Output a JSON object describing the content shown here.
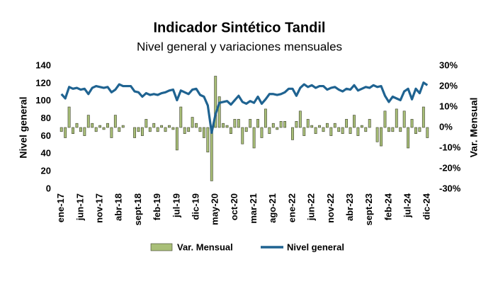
{
  "chart_data": {
    "type": "bar-line",
    "title": "Indicador Sintético Tandil",
    "subtitle": "Nivel general y variaciones mensuales",
    "ylabel": "Nivel general",
    "y2label": "Var. Mensual",
    "categories": [
      "ene-17",
      null,
      null,
      null,
      null,
      "jun-17",
      null,
      null,
      null,
      null,
      "nov-17",
      null,
      null,
      null,
      null,
      "abr-18",
      null,
      null,
      null,
      null,
      "sept-18",
      null,
      null,
      null,
      null,
      "feb-19",
      null,
      null,
      null,
      null,
      "jul-19",
      null,
      null,
      null,
      null,
      "dic-19",
      null,
      null,
      null,
      null,
      "may-20",
      null,
      null,
      null,
      null,
      "oct-20",
      null,
      null,
      null,
      null,
      "mar-21",
      null,
      null,
      null,
      null,
      "ago-21",
      null,
      null,
      null,
      null,
      "ene-22",
      null,
      null,
      null,
      null,
      "jun-22",
      null,
      null,
      null,
      null,
      "nov-22",
      null,
      null,
      null,
      null,
      "abr-23",
      null,
      null,
      null,
      null,
      "sept-23",
      null,
      null,
      null,
      null,
      "feb-24",
      null,
      null,
      null,
      null,
      "jul-24",
      null,
      null,
      null,
      null,
      "dic-24"
    ],
    "series": [
      {
        "name": "Var. Mensual",
        "type": "bar",
        "axis": "y2",
        "color": "#a9bf78",
        "edge": "#3a3f2a",
        "values": [
          -2,
          -5,
          10,
          -3,
          2,
          -2,
          -4,
          6,
          2,
          -2,
          1,
          -1,
          2,
          -5,
          6,
          -2,
          1,
          0,
          0,
          -5,
          -2,
          -4,
          4,
          -2,
          2,
          -2,
          1,
          -2,
          1,
          -1,
          -11,
          10,
          -3,
          -2,
          5,
          2,
          -2,
          -5,
          -12,
          -26,
          25,
          15,
          2,
          1,
          -3,
          4,
          4,
          -8,
          -2,
          4,
          -10,
          4,
          -5,
          9,
          -3,
          2,
          -1,
          3,
          3,
          0,
          -6,
          3,
          8,
          -4,
          4,
          1,
          -3,
          1,
          -2,
          2,
          -4,
          2,
          -2,
          -3,
          4,
          -3,
          6,
          -4,
          1,
          -2,
          4,
          0,
          -7,
          -9,
          8,
          -2,
          -2,
          9,
          -2,
          8,
          -10,
          4,
          -3,
          -2,
          10,
          -5
        ]
      },
      {
        "name": "Nivel general",
        "type": "line",
        "axis": "y",
        "color": "#1f6391",
        "values": [
          108,
          103,
          116,
          114,
          115,
          113,
          114,
          108,
          115,
          117,
          116,
          115,
          116,
          110,
          113,
          119,
          117,
          117,
          117,
          111,
          110,
          105,
          109,
          107,
          108,
          107,
          109,
          110,
          112,
          113,
          101,
          112,
          110,
          108,
          113,
          114,
          107,
          105,
          95,
          64,
          85,
          98,
          99,
          100,
          96,
          101,
          106,
          99,
          97,
          100,
          98,
          105,
          97,
          102,
          108,
          108,
          107,
          108,
          110,
          114,
          114,
          106,
          115,
          119,
          116,
          118,
          115,
          117,
          117,
          113,
          115,
          116,
          113,
          111,
          114,
          113,
          118,
          112,
          114,
          116,
          115,
          118,
          116,
          117,
          106,
          99,
          105,
          103,
          101,
          111,
          114,
          102,
          114,
          109,
          121,
          118
        ]
      }
    ],
    "ylim": [
      0,
      140
    ],
    "yticks": [
      0,
      20,
      40,
      60,
      80,
      100,
      120,
      140
    ],
    "y2lim": [
      -30,
      30
    ],
    "y2ticks": [
      {
        "value": -30,
        "label": "-30%"
      },
      {
        "value": -20,
        "label": "-20%"
      },
      {
        "value": -10,
        "label": "-10%"
      },
      {
        "value": 0,
        "label": "0%"
      },
      {
        "value": 10,
        "label": "10%"
      },
      {
        "value": 20,
        "label": "20%"
      },
      {
        "value": 30,
        "label": "30%"
      }
    ],
    "grid": false
  }
}
